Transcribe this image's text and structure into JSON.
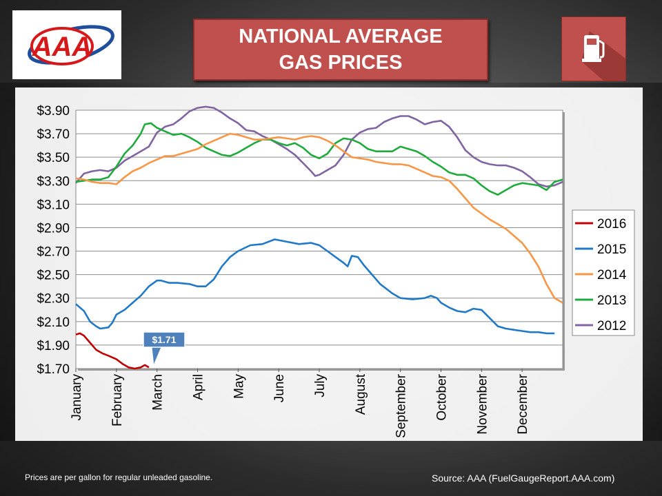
{
  "header": {
    "title": "NATIONAL AVERAGE\nGAS PRICES",
    "logo_text": "AAA",
    "pump_icon": "gas-pump-icon"
  },
  "footer": {
    "note": "Prices are per gallon for regular unleaded gasoline.",
    "source": "Source:  AAA (FuelGaugeReport.AAA.com)"
  },
  "colors": {
    "title_bg": "#c0504d",
    "2016": "#c00000",
    "2015": "#1f78c8",
    "2014": "#f79646",
    "2013": "#1faa3c",
    "2012": "#8064a2"
  },
  "chart_data": {
    "type": "line",
    "ylim": [
      1.7,
      3.9
    ],
    "yticks": [
      "$1.70",
      "$1.90",
      "$2.10",
      "$2.30",
      "$2.50",
      "$2.70",
      "$2.90",
      "$3.10",
      "$3.30",
      "$3.50",
      "$3.70",
      "$3.90"
    ],
    "xlim": [
      0,
      12
    ],
    "xticks": [
      "January",
      "February",
      "March",
      "April",
      "May",
      "June",
      "July",
      "August",
      "September",
      "October",
      "November",
      "December"
    ],
    "legend_position": "right",
    "grid": true,
    "annotation": {
      "text": "$1.71",
      "x": 1.85,
      "y": 1.71,
      "series": "2016"
    },
    "series": [
      {
        "name": "2016",
        "points": [
          [
            0,
            1.99
          ],
          [
            0.1,
            2.0
          ],
          [
            0.2,
            1.98
          ],
          [
            0.35,
            1.92
          ],
          [
            0.5,
            1.86
          ],
          [
            0.65,
            1.83
          ],
          [
            0.8,
            1.81
          ],
          [
            1.0,
            1.78
          ],
          [
            1.15,
            1.74
          ],
          [
            1.3,
            1.71
          ],
          [
            1.45,
            1.7
          ],
          [
            1.6,
            1.71
          ],
          [
            1.7,
            1.73
          ],
          [
            1.8,
            1.71
          ]
        ]
      },
      {
        "name": "2015",
        "points": [
          [
            0,
            2.25
          ],
          [
            0.2,
            2.19
          ],
          [
            0.35,
            2.1
          ],
          [
            0.5,
            2.06
          ],
          [
            0.6,
            2.04
          ],
          [
            0.8,
            2.05
          ],
          [
            0.9,
            2.09
          ],
          [
            1.0,
            2.16
          ],
          [
            1.2,
            2.2
          ],
          [
            1.4,
            2.26
          ],
          [
            1.6,
            2.32
          ],
          [
            1.8,
            2.4
          ],
          [
            2.0,
            2.45
          ],
          [
            2.1,
            2.45
          ],
          [
            2.3,
            2.43
          ],
          [
            2.5,
            2.43
          ],
          [
            2.8,
            2.42
          ],
          [
            3.0,
            2.4
          ],
          [
            3.2,
            2.4
          ],
          [
            3.4,
            2.46
          ],
          [
            3.6,
            2.57
          ],
          [
            3.8,
            2.65
          ],
          [
            4.0,
            2.7
          ],
          [
            4.3,
            2.75
          ],
          [
            4.6,
            2.76
          ],
          [
            4.9,
            2.8
          ],
          [
            5.2,
            2.78
          ],
          [
            5.5,
            2.76
          ],
          [
            5.8,
            2.77
          ],
          [
            6.0,
            2.75
          ],
          [
            6.2,
            2.7
          ],
          [
            6.4,
            2.65
          ],
          [
            6.6,
            2.6
          ],
          [
            6.7,
            2.57
          ],
          [
            6.8,
            2.66
          ],
          [
            6.95,
            2.65
          ],
          [
            7.1,
            2.58
          ],
          [
            7.3,
            2.5
          ],
          [
            7.5,
            2.42
          ],
          [
            7.8,
            2.34
          ],
          [
            8.0,
            2.3
          ],
          [
            8.3,
            2.29
          ],
          [
            8.6,
            2.3
          ],
          [
            8.75,
            2.32
          ],
          [
            8.9,
            2.3
          ],
          [
            9.0,
            2.26
          ],
          [
            9.2,
            2.22
          ],
          [
            9.4,
            2.19
          ],
          [
            9.6,
            2.18
          ],
          [
            9.8,
            2.21
          ],
          [
            10.0,
            2.2
          ],
          [
            10.2,
            2.13
          ],
          [
            10.4,
            2.06
          ],
          [
            10.6,
            2.04
          ],
          [
            10.8,
            2.03
          ],
          [
            11.0,
            2.02
          ],
          [
            11.2,
            2.01
          ],
          [
            11.4,
            2.01
          ],
          [
            11.6,
            2.0
          ],
          [
            11.8,
            2.0
          ]
        ]
      },
      {
        "name": "2014",
        "points": [
          [
            0,
            3.32
          ],
          [
            0.2,
            3.31
          ],
          [
            0.4,
            3.29
          ],
          [
            0.6,
            3.28
          ],
          [
            0.8,
            3.28
          ],
          [
            1.0,
            3.27
          ],
          [
            1.2,
            3.33
          ],
          [
            1.4,
            3.38
          ],
          [
            1.6,
            3.41
          ],
          [
            1.8,
            3.45
          ],
          [
            2.0,
            3.48
          ],
          [
            2.2,
            3.51
          ],
          [
            2.4,
            3.51
          ],
          [
            2.6,
            3.53
          ],
          [
            2.8,
            3.55
          ],
          [
            3.0,
            3.57
          ],
          [
            3.2,
            3.61
          ],
          [
            3.4,
            3.64
          ],
          [
            3.6,
            3.67
          ],
          [
            3.8,
            3.7
          ],
          [
            4.0,
            3.69
          ],
          [
            4.2,
            3.67
          ],
          [
            4.4,
            3.65
          ],
          [
            4.6,
            3.65
          ],
          [
            4.8,
            3.66
          ],
          [
            5.0,
            3.67
          ],
          [
            5.2,
            3.66
          ],
          [
            5.4,
            3.65
          ],
          [
            5.6,
            3.67
          ],
          [
            5.8,
            3.68
          ],
          [
            6.0,
            3.67
          ],
          [
            6.2,
            3.64
          ],
          [
            6.4,
            3.6
          ],
          [
            6.6,
            3.55
          ],
          [
            6.8,
            3.5
          ],
          [
            7.0,
            3.49
          ],
          [
            7.2,
            3.48
          ],
          [
            7.4,
            3.46
          ],
          [
            7.6,
            3.45
          ],
          [
            7.8,
            3.44
          ],
          [
            8.0,
            3.44
          ],
          [
            8.2,
            3.43
          ],
          [
            8.4,
            3.4
          ],
          [
            8.6,
            3.37
          ],
          [
            8.8,
            3.34
          ],
          [
            9.0,
            3.33
          ],
          [
            9.2,
            3.3
          ],
          [
            9.4,
            3.23
          ],
          [
            9.6,
            3.15
          ],
          [
            9.8,
            3.07
          ],
          [
            10.0,
            3.02
          ],
          [
            10.2,
            2.97
          ],
          [
            10.4,
            2.93
          ],
          [
            10.6,
            2.89
          ],
          [
            10.8,
            2.83
          ],
          [
            11.0,
            2.77
          ],
          [
            11.2,
            2.68
          ],
          [
            11.4,
            2.57
          ],
          [
            11.6,
            2.42
          ],
          [
            11.8,
            2.3
          ],
          [
            12.0,
            2.26
          ]
        ]
      },
      {
        "name": "2013",
        "points": [
          [
            0,
            3.29
          ],
          [
            0.2,
            3.3
          ],
          [
            0.4,
            3.31
          ],
          [
            0.6,
            3.31
          ],
          [
            0.8,
            3.33
          ],
          [
            1.0,
            3.42
          ],
          [
            1.2,
            3.53
          ],
          [
            1.4,
            3.6
          ],
          [
            1.6,
            3.7
          ],
          [
            1.7,
            3.78
          ],
          [
            1.85,
            3.79
          ],
          [
            2.0,
            3.75
          ],
          [
            2.2,
            3.72
          ],
          [
            2.4,
            3.69
          ],
          [
            2.6,
            3.7
          ],
          [
            2.8,
            3.67
          ],
          [
            3.0,
            3.63
          ],
          [
            3.2,
            3.58
          ],
          [
            3.4,
            3.55
          ],
          [
            3.6,
            3.52
          ],
          [
            3.8,
            3.51
          ],
          [
            4.0,
            3.54
          ],
          [
            4.2,
            3.58
          ],
          [
            4.4,
            3.62
          ],
          [
            4.6,
            3.65
          ],
          [
            4.8,
            3.65
          ],
          [
            5.0,
            3.62
          ],
          [
            5.2,
            3.6
          ],
          [
            5.4,
            3.62
          ],
          [
            5.6,
            3.58
          ],
          [
            5.8,
            3.52
          ],
          [
            6.0,
            3.49
          ],
          [
            6.2,
            3.53
          ],
          [
            6.4,
            3.62
          ],
          [
            6.6,
            3.66
          ],
          [
            6.8,
            3.65
          ],
          [
            7.0,
            3.62
          ],
          [
            7.2,
            3.57
          ],
          [
            7.4,
            3.55
          ],
          [
            7.6,
            3.55
          ],
          [
            7.8,
            3.55
          ],
          [
            8.0,
            3.59
          ],
          [
            8.2,
            3.57
          ],
          [
            8.4,
            3.55
          ],
          [
            8.6,
            3.51
          ],
          [
            8.8,
            3.46
          ],
          [
            9.0,
            3.42
          ],
          [
            9.2,
            3.37
          ],
          [
            9.4,
            3.35
          ],
          [
            9.6,
            3.35
          ],
          [
            9.8,
            3.32
          ],
          [
            10.0,
            3.26
          ],
          [
            10.2,
            3.21
          ],
          [
            10.4,
            3.18
          ],
          [
            10.6,
            3.22
          ],
          [
            10.8,
            3.26
          ],
          [
            11.0,
            3.28
          ],
          [
            11.2,
            3.27
          ],
          [
            11.4,
            3.26
          ],
          [
            11.6,
            3.22
          ],
          [
            11.8,
            3.29
          ],
          [
            12.0,
            3.31
          ]
        ]
      },
      {
        "name": "2012",
        "points": [
          [
            0,
            3.28
          ],
          [
            0.2,
            3.36
          ],
          [
            0.4,
            3.38
          ],
          [
            0.6,
            3.39
          ],
          [
            0.8,
            3.38
          ],
          [
            1.0,
            3.41
          ],
          [
            1.2,
            3.47
          ],
          [
            1.4,
            3.51
          ],
          [
            1.6,
            3.55
          ],
          [
            1.8,
            3.59
          ],
          [
            2.0,
            3.71
          ],
          [
            2.2,
            3.76
          ],
          [
            2.4,
            3.78
          ],
          [
            2.6,
            3.83
          ],
          [
            2.8,
            3.89
          ],
          [
            3.0,
            3.92
          ],
          [
            3.2,
            3.93
          ],
          [
            3.4,
            3.92
          ],
          [
            3.6,
            3.88
          ],
          [
            3.8,
            3.83
          ],
          [
            4.0,
            3.79
          ],
          [
            4.2,
            3.73
          ],
          [
            4.4,
            3.72
          ],
          [
            4.6,
            3.68
          ],
          [
            4.8,
            3.65
          ],
          [
            5.0,
            3.61
          ],
          [
            5.2,
            3.57
          ],
          [
            5.4,
            3.52
          ],
          [
            5.6,
            3.45
          ],
          [
            5.8,
            3.38
          ],
          [
            5.9,
            3.34
          ],
          [
            6.0,
            3.35
          ],
          [
            6.2,
            3.39
          ],
          [
            6.4,
            3.43
          ],
          [
            6.6,
            3.52
          ],
          [
            6.8,
            3.65
          ],
          [
            7.0,
            3.71
          ],
          [
            7.2,
            3.74
          ],
          [
            7.4,
            3.75
          ],
          [
            7.6,
            3.8
          ],
          [
            7.8,
            3.83
          ],
          [
            8.0,
            3.85
          ],
          [
            8.2,
            3.85
          ],
          [
            8.4,
            3.82
          ],
          [
            8.6,
            3.78
          ],
          [
            8.8,
            3.8
          ],
          [
            9.0,
            3.81
          ],
          [
            9.2,
            3.76
          ],
          [
            9.4,
            3.67
          ],
          [
            9.6,
            3.56
          ],
          [
            9.8,
            3.5
          ],
          [
            10.0,
            3.46
          ],
          [
            10.2,
            3.44
          ],
          [
            10.4,
            3.43
          ],
          [
            10.6,
            3.43
          ],
          [
            10.8,
            3.41
          ],
          [
            11.0,
            3.38
          ],
          [
            11.2,
            3.33
          ],
          [
            11.4,
            3.27
          ],
          [
            11.6,
            3.25
          ],
          [
            11.8,
            3.26
          ],
          [
            12.0,
            3.29
          ]
        ]
      }
    ]
  }
}
